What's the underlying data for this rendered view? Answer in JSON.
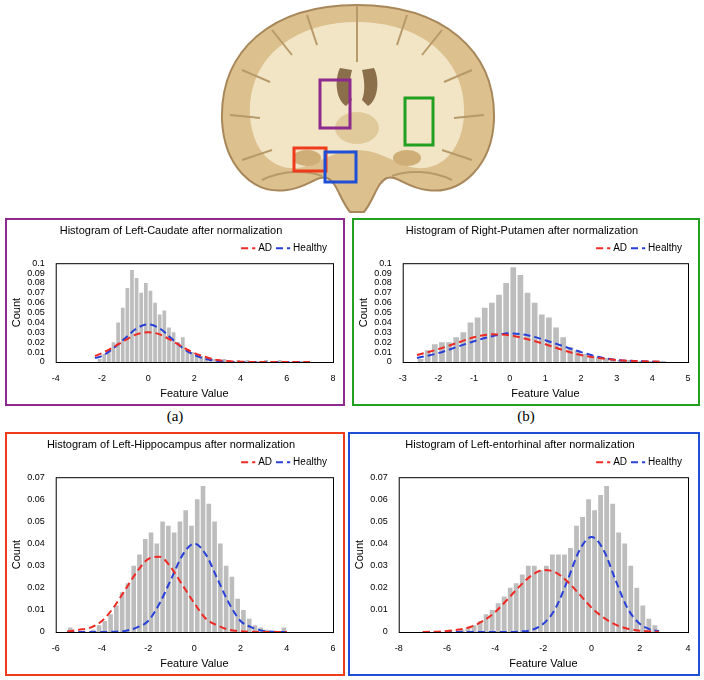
{
  "chart_data": [
    {
      "type": "histogram",
      "title": "Histogram of Left-Caudate after normalization",
      "x_label": "Feature Value",
      "y_label": "Count",
      "caption": "(a)",
      "xlim": [
        -4,
        8
      ],
      "xticks": [
        -4,
        -2,
        0,
        2,
        4,
        6,
        8
      ],
      "ylim": [
        0,
        0.1
      ],
      "yticks": [
        0,
        0.01,
        0.02,
        0.03,
        0.04,
        0.05,
        0.06,
        0.07,
        0.08,
        0.09,
        0.1
      ],
      "grid": false,
      "legend": "upper right",
      "histogram": {
        "color": "#bdbdbd",
        "bins": [
          -2.2,
          -2,
          -1.8,
          -1.6,
          -1.4,
          -1.2,
          -1,
          -0.8,
          -0.6,
          -0.4,
          -0.2,
          0,
          0.2,
          0.4,
          0.6,
          0.8,
          1,
          1.2,
          1.4,
          1.6,
          1.8,
          2,
          2.2,
          2.4,
          2.6,
          2.8,
          3,
          3.2,
          3.4,
          3.6,
          3.8,
          4,
          4.2,
          4.4,
          4.6,
          4.8,
          5,
          5.2,
          5.4,
          5.6,
          5.8,
          6,
          6.2,
          6.4,
          6.6,
          6.8,
          7
        ],
        "counts": [
          0.003,
          0.008,
          0.012,
          0.02,
          0.04,
          0.055,
          0.075,
          0.093,
          0.085,
          0.07,
          0.08,
          0.072,
          0.06,
          0.048,
          0.052,
          0.035,
          0.03,
          0.02,
          0.025,
          0.012,
          0.01,
          0.008,
          0.006,
          0.004,
          0.004,
          0.003,
          0.002,
          0.003,
          0.002,
          0.001,
          0.002,
          0,
          0.002,
          0.001,
          0.001,
          0,
          0.002,
          0,
          0.001,
          0.002,
          0,
          0,
          0.001,
          0,
          0.001,
          0.001
        ]
      },
      "series": [
        {
          "name": "AD",
          "color": "#ee2a24",
          "line_style": "dashed",
          "x": [
            -2.3,
            -2,
            -1.5,
            -1,
            -0.5,
            0,
            0.5,
            1,
            1.5,
            2,
            2.5,
            3,
            4,
            5,
            6,
            7
          ],
          "values": [
            0.006,
            0.009,
            0.015,
            0.022,
            0.028,
            0.03,
            0.028,
            0.022,
            0.015,
            0.009,
            0.005,
            0.002,
            0.0003,
            0,
            0,
            0
          ]
        },
        {
          "name": "Healthy",
          "color": "#2840d8",
          "line_style": "dashed",
          "x": [
            -2.3,
            -2,
            -1.5,
            -1,
            -0.5,
            0,
            0.5,
            1,
            1.5,
            2,
            2.5,
            3,
            4,
            5,
            6,
            7
          ],
          "values": [
            0.004,
            0.006,
            0.014,
            0.024,
            0.034,
            0.038,
            0.034,
            0.024,
            0.014,
            0.007,
            0.003,
            0.001,
            0,
            0,
            0,
            0
          ]
        }
      ]
    },
    {
      "type": "histogram",
      "title": "Histogram of Right-Putamen after normalization",
      "x_label": "Feature Value",
      "y_label": "Count",
      "caption": "(b)",
      "xlim": [
        -3,
        5
      ],
      "xticks": [
        -3,
        -2,
        -1,
        0,
        1,
        2,
        3,
        4,
        5
      ],
      "ylim": [
        0,
        0.1
      ],
      "yticks": [
        0,
        0.01,
        0.02,
        0.03,
        0.04,
        0.05,
        0.06,
        0.07,
        0.08,
        0.09,
        0.1
      ],
      "grid": false,
      "legend": "upper right",
      "histogram": {
        "color": "#bdbdbd",
        "bins": [
          -2.6,
          -2.4,
          -2.2,
          -2,
          -1.8,
          -1.6,
          -1.4,
          -1.2,
          -1,
          -0.8,
          -0.6,
          -0.4,
          -0.2,
          0,
          0.2,
          0.4,
          0.6,
          0.8,
          1,
          1.2,
          1.4,
          1.6,
          1.8,
          2,
          2.2,
          2.4,
          2.6,
          2.8,
          3,
          3.2,
          3.4,
          3.6,
          3.8,
          4,
          4.2,
          4.4
        ],
        "counts": [
          0.003,
          0.012,
          0.018,
          0.02,
          0.02,
          0.025,
          0.03,
          0.04,
          0.045,
          0.055,
          0.06,
          0.068,
          0.08,
          0.096,
          0.088,
          0.07,
          0.06,
          0.048,
          0.045,
          0.035,
          0.025,
          0.015,
          0.012,
          0.008,
          0.006,
          0.005,
          0.004,
          0.003,
          0.002,
          0.002,
          0.001,
          0.001,
          0.001,
          0.001,
          0.001
        ]
      },
      "series": [
        {
          "name": "AD",
          "color": "#ee2a24",
          "line_style": "dashed",
          "x": [
            -2.6,
            -2,
            -1.5,
            -1,
            -0.5,
            0,
            0.5,
            1,
            1.5,
            2,
            2.5,
            3,
            3.5,
            4,
            4.3
          ],
          "values": [
            0.007,
            0.013,
            0.019,
            0.025,
            0.028,
            0.027,
            0.023,
            0.018,
            0.012,
            0.007,
            0.004,
            0.002,
            0.001,
            0.0004,
            0.0002
          ]
        },
        {
          "name": "Healthy",
          "color": "#2840d8",
          "line_style": "dashed",
          "x": [
            -2.6,
            -2,
            -1.5,
            -1,
            -0.5,
            0,
            0.5,
            1,
            1.5,
            2,
            2.5,
            3,
            3.5,
            4,
            4.3
          ],
          "values": [
            0.004,
            0.009,
            0.015,
            0.021,
            0.026,
            0.029,
            0.027,
            0.022,
            0.016,
            0.01,
            0.005,
            0.002,
            0.001,
            0.0003,
            0.0001
          ]
        }
      ]
    },
    {
      "type": "histogram",
      "title": "Histogram of Left-Hippocampus after normalization",
      "x_label": "Feature Value",
      "y_label": "Count",
      "xlim": [
        -6,
        6
      ],
      "xticks": [
        -6,
        -4,
        -2,
        0,
        2,
        4,
        6
      ],
      "ylim": [
        0,
        0.07
      ],
      "yticks": [
        0,
        0.01,
        0.02,
        0.03,
        0.04,
        0.05,
        0.06,
        0.07
      ],
      "grid": false,
      "legend": "upper right",
      "histogram": {
        "color": "#bdbdbd",
        "bins": [
          -5.5,
          -5.25,
          -5,
          -4.75,
          -4.5,
          -4.25,
          -4,
          -3.75,
          -3.5,
          -3.25,
          -3,
          -2.75,
          -2.5,
          -2.25,
          -2,
          -1.75,
          -1.5,
          -1.25,
          -1,
          -0.75,
          -0.5,
          -0.25,
          0,
          0.25,
          0.5,
          0.75,
          1,
          1.25,
          1.5,
          1.75,
          2,
          2.25,
          2.5,
          2.75,
          3,
          3.25,
          3.5,
          3.75,
          4
        ],
        "counts": [
          0.002,
          0,
          0,
          0,
          0.001,
          0.003,
          0.005,
          0.008,
          0.012,
          0.018,
          0.022,
          0.03,
          0.035,
          0.042,
          0.045,
          0.04,
          0.05,
          0.048,
          0.045,
          0.05,
          0.055,
          0.048,
          0.06,
          0.066,
          0.058,
          0.05,
          0.04,
          0.03,
          0.025,
          0.015,
          0.01,
          0.006,
          0.003,
          0.002,
          0.001,
          0,
          0,
          0.002
        ]
      },
      "series": [
        {
          "name": "AD",
          "color": "#ee2a24",
          "line_style": "dashed",
          "x": [
            -5.5,
            -5,
            -4.5,
            -4,
            -3.5,
            -3,
            -2.5,
            -2,
            -1.5,
            -1,
            -0.5,
            0,
            0.5,
            1,
            1.5,
            2,
            2.5,
            3,
            3.5,
            4
          ],
          "values": [
            0.0002,
            0.001,
            0.002,
            0.005,
            0.011,
            0.019,
            0.027,
            0.033,
            0.034,
            0.029,
            0.021,
            0.013,
            0.006,
            0.003,
            0.001,
            0.0003,
            0.0001,
            0,
            0,
            0
          ]
        },
        {
          "name": "Healthy",
          "color": "#2840d8",
          "line_style": "dashed",
          "x": [
            -5.5,
            -5,
            -4.5,
            -4,
            -3.5,
            -3,
            -2.5,
            -2,
            -1.5,
            -1,
            -0.5,
            0,
            0.5,
            1,
            1.5,
            2,
            2.5,
            3,
            3.5,
            4
          ],
          "values": [
            0,
            0,
            0,
            0,
            0.0001,
            0.0005,
            0.002,
            0.005,
            0.013,
            0.024,
            0.035,
            0.04,
            0.035,
            0.024,
            0.013,
            0.005,
            0.002,
            0.0005,
            0.0001,
            0
          ]
        }
      ]
    },
    {
      "type": "histogram",
      "title": "Histogram of Left-entorhinal after normalization",
      "x_label": "Feature Value",
      "y_label": "Count",
      "xlim": [
        -8,
        4
      ],
      "xticks": [
        -8,
        -6,
        -4,
        -2,
        0,
        2,
        4
      ],
      "ylim": [
        0,
        0.07
      ],
      "yticks": [
        0,
        0.01,
        0.02,
        0.03,
        0.04,
        0.05,
        0.06,
        0.07
      ],
      "grid": false,
      "legend": "upper right",
      "histogram": {
        "color": "#bdbdbd",
        "bins": [
          -6,
          -5.75,
          -5.5,
          -5.25,
          -5,
          -4.75,
          -4.5,
          -4.25,
          -4,
          -3.75,
          -3.5,
          -3.25,
          -3,
          -2.75,
          -2.5,
          -2.25,
          -2,
          -1.75,
          -1.5,
          -1.25,
          -1,
          -0.75,
          -0.5,
          -0.25,
          0,
          0.25,
          0.5,
          0.75,
          1,
          1.25,
          1.5,
          1.75,
          2,
          2.25,
          2.5,
          2.75
        ],
        "counts": [
          0.001,
          0,
          0.001,
          0.002,
          0.003,
          0.005,
          0.008,
          0.01,
          0.013,
          0.016,
          0.02,
          0.022,
          0.026,
          0.03,
          0.03,
          0.028,
          0.03,
          0.035,
          0.035,
          0.035,
          0.038,
          0.048,
          0.052,
          0.06,
          0.055,
          0.062,
          0.066,
          0.058,
          0.045,
          0.04,
          0.03,
          0.02,
          0.012,
          0.006,
          0.003
        ]
      },
      "series": [
        {
          "name": "AD",
          "color": "#ee2a24",
          "line_style": "dashed",
          "x": [
            -7,
            -6,
            -5,
            -4.5,
            -4,
            -3.5,
            -3,
            -2.5,
            -2,
            -1.5,
            -1,
            -0.5,
            0,
            0.5,
            1,
            1.5,
            2,
            2.5,
            2.8
          ],
          "values": [
            0,
            0.0004,
            0.0024,
            0.005,
            0.009,
            0.0146,
            0.0205,
            0.0255,
            0.028,
            0.027,
            0.0228,
            0.017,
            0.011,
            0.0065,
            0.0033,
            0.0015,
            0.0006,
            0.0002,
            0.0001
          ]
        },
        {
          "name": "Healthy",
          "color": "#2840d8",
          "line_style": "dashed",
          "x": [
            -7,
            -6,
            -5,
            -4.5,
            -4,
            -3.5,
            -3,
            -2.5,
            -2,
            -1.5,
            -1,
            -0.5,
            0,
            0.5,
            1,
            1.5,
            2,
            2.5,
            2.8
          ],
          "values": [
            0,
            0,
            0,
            0,
            0,
            0,
            0.0002,
            0.0009,
            0.0037,
            0.0106,
            0.0233,
            0.037,
            0.043,
            0.037,
            0.0233,
            0.0106,
            0.0037,
            0.0009,
            0.0004
          ]
        }
      ]
    }
  ]
}
